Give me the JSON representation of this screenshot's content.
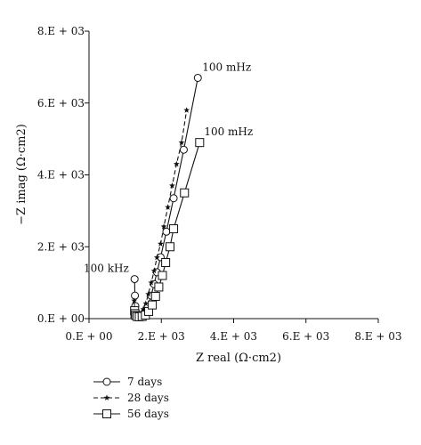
{
  "chart_data": {
    "type": "scatter",
    "title": "",
    "xlabel": "Z real (Ω·cm2)",
    "ylabel": "−Z imag (Ω·cm2)",
    "xlim": [
      0,
      8000
    ],
    "ylim": [
      0,
      8000
    ],
    "x_ticks": [
      0,
      2000,
      4000,
      6000,
      8000
    ],
    "y_ticks": [
      0,
      2000,
      4000,
      6000,
      8000
    ],
    "x_tick_labels": [
      "0.E + 00",
      "2.E + 03",
      "4.E + 03",
      "6.E + 03",
      "8.E + 03"
    ],
    "y_tick_labels": [
      "0.E + 00",
      "2.E + 03",
      "4.E + 03",
      "6.E + 03",
      "8.E + 03"
    ],
    "grid": false,
    "legend_position": "bottom-left",
    "series": [
      {
        "name": "7 days",
        "marker": "circle",
        "line": "solid",
        "color": "#111111",
        "points": [
          [
            1260,
            1100
          ],
          [
            1270,
            640
          ],
          [
            1280,
            350
          ],
          [
            1290,
            200
          ],
          [
            1310,
            120
          ],
          [
            1330,
            90
          ],
          [
            1370,
            60
          ],
          [
            1420,
            70
          ],
          [
            1480,
            100
          ],
          [
            1550,
            180
          ],
          [
            1620,
            330
          ],
          [
            1720,
            640
          ],
          [
            1800,
            960
          ],
          [
            1880,
            1290
          ],
          [
            1980,
            1710
          ],
          [
            2140,
            2420
          ],
          [
            2340,
            3350
          ],
          [
            2620,
            4700
          ],
          [
            3010,
            6700
          ]
        ]
      },
      {
        "name": "28 days",
        "marker": "star",
        "line": "dashed",
        "color": "#111111",
        "points": [
          [
            1250,
            500
          ],
          [
            1260,
            300
          ],
          [
            1280,
            180
          ],
          [
            1300,
            110
          ],
          [
            1330,
            80
          ],
          [
            1380,
            80
          ],
          [
            1440,
            150
          ],
          [
            1500,
            260
          ],
          [
            1570,
            420
          ],
          [
            1640,
            680
          ],
          [
            1720,
            1000
          ],
          [
            1800,
            1330
          ],
          [
            1880,
            1700
          ],
          [
            1980,
            2080
          ],
          [
            2070,
            2560
          ],
          [
            2180,
            3100
          ],
          [
            2300,
            3700
          ],
          [
            2420,
            4300
          ],
          [
            2560,
            4900
          ],
          [
            2700,
            5800
          ]
        ]
      },
      {
        "name": "56 days",
        "marker": "square",
        "line": "solid",
        "color": "#111111",
        "points": [
          [
            1260,
            220
          ],
          [
            1270,
            140
          ],
          [
            1290,
            90
          ],
          [
            1330,
            60
          ],
          [
            1390,
            50
          ],
          [
            1470,
            60
          ],
          [
            1560,
            100
          ],
          [
            1650,
            200
          ],
          [
            1750,
            380
          ],
          [
            1840,
            620
          ],
          [
            1930,
            880
          ],
          [
            2030,
            1200
          ],
          [
            2120,
            1560
          ],
          [
            2240,
            2000
          ],
          [
            2340,
            2500
          ],
          [
            2640,
            3500
          ],
          [
            3060,
            4900
          ]
        ]
      }
    ],
    "annotations": [
      {
        "text": "100 kHz",
        "x": 1250,
        "y": 1100
      },
      {
        "text": "100 mHz",
        "x": 3010,
        "y": 6700
      },
      {
        "text": "100 mHz",
        "x": 3060,
        "y": 4900
      }
    ]
  }
}
